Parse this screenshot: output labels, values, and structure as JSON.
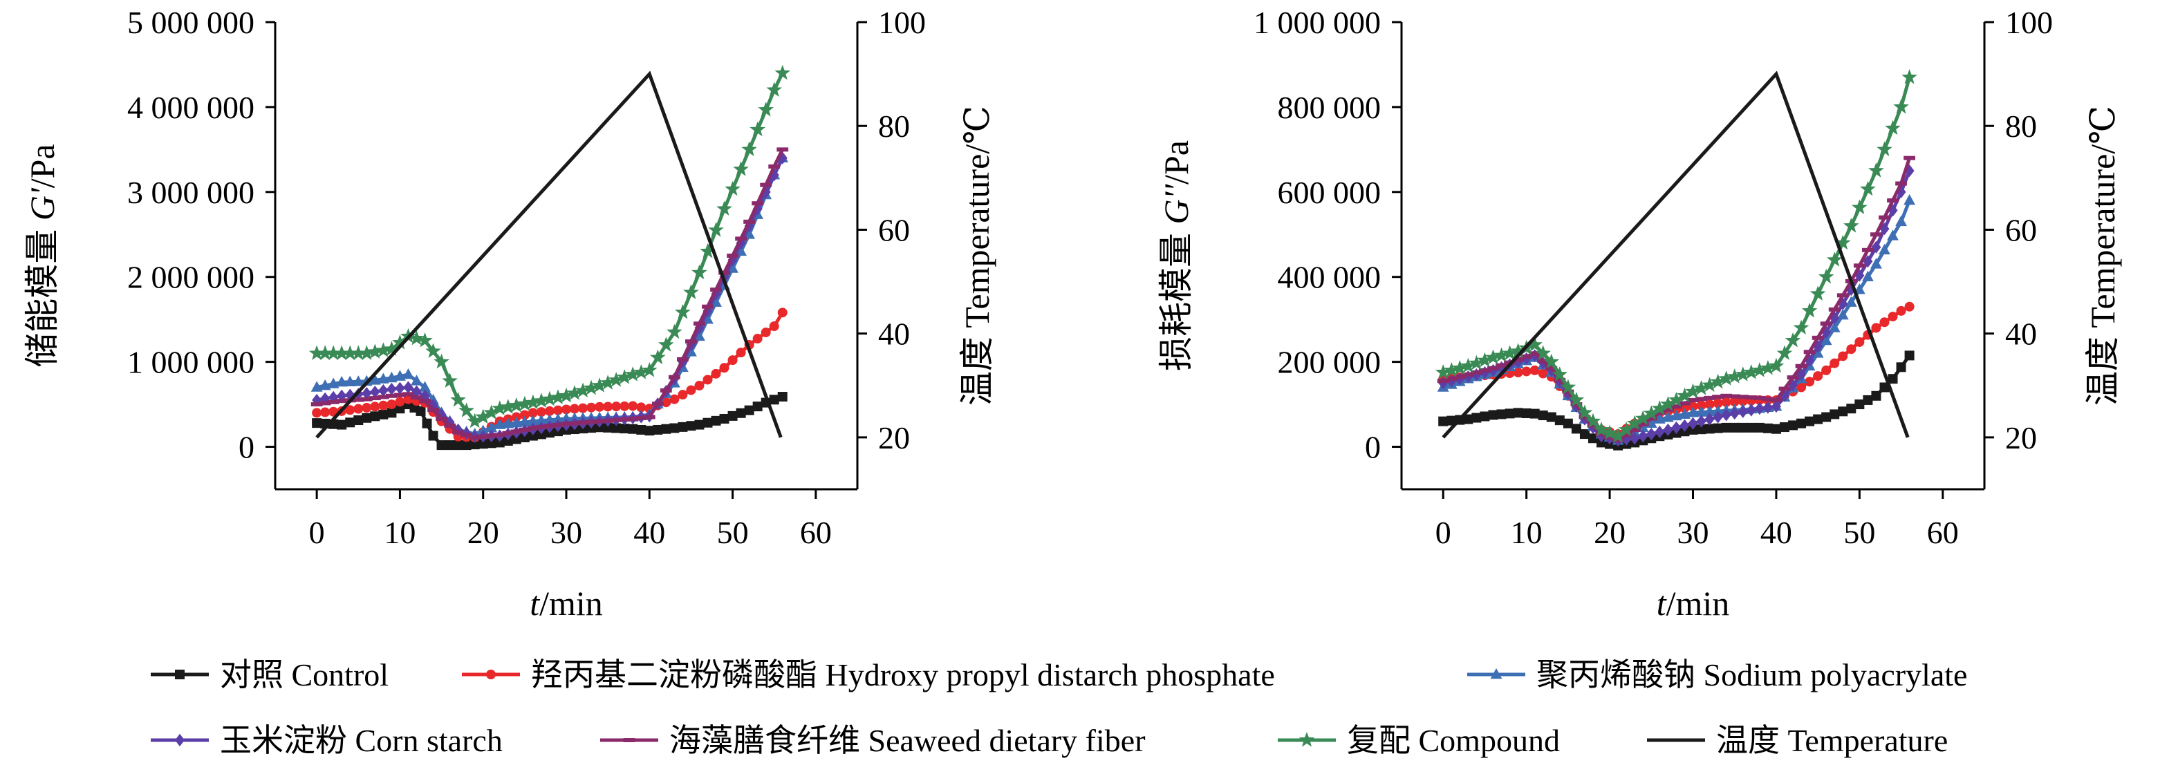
{
  "chart_data": [
    {
      "type": "line",
      "xlabel_italic": "t",
      "xlabel_rest": "/min",
      "ylabel_prefix": "储能模量 ",
      "ylabel_italic": "G'",
      "ylabel_suffix": "/Pa",
      "y2label": "温度 Temperature/℃",
      "xlim": [
        -5,
        65
      ],
      "ylim": [
        -500000,
        5000000
      ],
      "y2lim": [
        10,
        100
      ],
      "xticks": [
        0,
        10,
        20,
        30,
        40,
        50,
        60
      ],
      "yticks": [
        0,
        1000000,
        2000000,
        3000000,
        4000000,
        5000000
      ],
      "ytick_labels": [
        "0",
        "1 000 000",
        "2 000 000",
        "3 000 000",
        "4 000 000",
        "5 000 000"
      ],
      "y2ticks": [
        20,
        40,
        60,
        80,
        100
      ],
      "temperature": {
        "x": [
          0,
          40,
          55.8
        ],
        "y": [
          20,
          90,
          20
        ]
      },
      "series": [
        {
          "name": "对照 Control",
          "marker": "square",
          "color": "#1a1a1a",
          "x": [
            0,
            3,
            6,
            9,
            11,
            12.5,
            14,
            15,
            18,
            22,
            26,
            30,
            34,
            38,
            40,
            43,
            46,
            49,
            52,
            54,
            56
          ],
          "y": [
            280000,
            260000,
            340000,
            400000,
            500000,
            420000,
            130000,
            20000,
            20000,
            50000,
            130000,
            200000,
            230000,
            210000,
            190000,
            220000,
            260000,
            330000,
            430000,
            520000,
            590000
          ]
        },
        {
          "name": "羟丙基二淀粉磷酸酯 Hydroxy propyl distarch phosphate",
          "marker": "circle",
          "color": "#e8282a",
          "x": [
            0,
            3,
            6,
            9,
            11,
            13,
            15,
            17,
            19,
            22,
            26,
            30,
            34,
            38,
            40,
            43,
            46,
            49,
            52,
            55,
            56
          ],
          "y": [
            400000,
            420000,
            460000,
            500000,
            560000,
            520000,
            300000,
            120000,
            110000,
            300000,
            400000,
            440000,
            470000,
            480000,
            450000,
            560000,
            720000,
            930000,
            1200000,
            1420000,
            1580000
          ]
        },
        {
          "name": "聚丙烯酸钠 Sodium polyacrylate",
          "marker": "triangle",
          "color": "#3e6fb4",
          "x": [
            0,
            3,
            6,
            9,
            11,
            13,
            15,
            17,
            19,
            22,
            26,
            30,
            34,
            38,
            40,
            43,
            46,
            49,
            52,
            55,
            56
          ],
          "y": [
            700000,
            760000,
            770000,
            810000,
            850000,
            700000,
            400000,
            200000,
            150000,
            260000,
            300000,
            330000,
            340000,
            350000,
            380000,
            750000,
            1300000,
            1900000,
            2500000,
            3200000,
            3400000
          ]
        },
        {
          "name": "玉米淀粉 Corn starch",
          "marker": "diamond",
          "color": "#5b3ea8",
          "x": [
            0,
            3,
            6,
            9,
            11,
            13,
            15,
            17,
            19,
            22,
            26,
            30,
            34,
            38,
            40,
            43,
            46,
            49,
            52,
            55,
            56
          ],
          "y": [
            550000,
            600000,
            630000,
            680000,
            700000,
            600000,
            380000,
            200000,
            120000,
            130000,
            210000,
            260000,
            300000,
            340000,
            360000,
            800000,
            1400000,
            2000000,
            2600000,
            3200000,
            3400000
          ]
        },
        {
          "name": "海藻膳食纤维 Seaweed dietary fiber",
          "marker": "dash",
          "color": "#8a2a6a",
          "x": [
            0,
            3,
            6,
            9,
            11,
            13,
            15,
            17,
            19,
            22,
            26,
            30,
            34,
            38,
            40,
            43,
            46,
            49,
            52,
            55,
            56
          ],
          "y": [
            500000,
            540000,
            560000,
            600000,
            620000,
            540000,
            330000,
            170000,
            110000,
            140000,
            220000,
            270000,
            300000,
            330000,
            350000,
            820000,
            1450000,
            2050000,
            2650000,
            3300000,
            3500000
          ]
        },
        {
          "name": "复配 Compound",
          "marker": "star",
          "color": "#3a8a55",
          "x": [
            0,
            3,
            6,
            9,
            11,
            13,
            15,
            17,
            19,
            22,
            26,
            30,
            34,
            38,
            40,
            43,
            46,
            49,
            52,
            55,
            56
          ],
          "y": [
            1100000,
            1100000,
            1100000,
            1150000,
            1300000,
            1250000,
            1000000,
            550000,
            300000,
            450000,
            520000,
            600000,
            720000,
            850000,
            900000,
            1350000,
            2050000,
            2800000,
            3500000,
            4200000,
            4400000
          ]
        }
      ]
    },
    {
      "type": "line",
      "xlabel_italic": "t",
      "xlabel_rest": "/min",
      "ylabel_prefix": "损耗模量 ",
      "ylabel_italic": "G''",
      "ylabel_suffix": "/Pa",
      "y2label": "温度 Temperature/℃",
      "xlim": [
        -5,
        65
      ],
      "ylim": [
        -100000,
        1000000
      ],
      "y2lim": [
        10,
        100
      ],
      "xticks": [
        0,
        10,
        20,
        30,
        40,
        50,
        60
      ],
      "yticks": [
        0,
        200000,
        400000,
        600000,
        800000,
        1000000
      ],
      "ytick_labels": [
        "0",
        "200 000",
        "400 000",
        "600 000",
        "800 000",
        "1 000 000"
      ],
      "y2ticks": [
        20,
        40,
        60,
        80,
        100
      ],
      "temperature": {
        "x": [
          0,
          40,
          55.8
        ],
        "y": [
          20,
          90,
          20
        ]
      },
      "series": [
        {
          "name": "对照 Control",
          "marker": "square",
          "color": "#1a1a1a",
          "x": [
            0,
            3,
            6,
            9,
            11,
            13,
            15,
            17,
            19,
            21,
            23,
            26,
            30,
            34,
            38,
            40,
            43,
            46,
            49,
            52,
            54,
            56
          ],
          "y": [
            60000,
            65000,
            75000,
            80000,
            78000,
            70000,
            55000,
            30000,
            10000,
            3000,
            10000,
            25000,
            40000,
            45000,
            45000,
            42000,
            55000,
            70000,
            90000,
            120000,
            160000,
            215000
          ]
        },
        {
          "name": "羟丙基二淀粉磷酸酯 Hydroxy propyl distarch phosphate",
          "marker": "circle",
          "color": "#e8282a",
          "x": [
            0,
            3,
            6,
            9,
            11,
            13,
            15,
            17,
            19,
            21,
            23,
            26,
            30,
            34,
            38,
            40,
            43,
            46,
            49,
            52,
            55,
            56
          ],
          "y": [
            160000,
            165000,
            170000,
            175000,
            180000,
            165000,
            120000,
            70000,
            40000,
            30000,
            55000,
            80000,
            95000,
            105000,
            110000,
            110000,
            140000,
            180000,
            230000,
            280000,
            320000,
            330000
          ]
        },
        {
          "name": "聚丙烯酸钠 Sodium polyacrylate",
          "marker": "triangle",
          "color": "#3e6fb4",
          "x": [
            0,
            3,
            6,
            9,
            11,
            13,
            15,
            17,
            19,
            21,
            23,
            26,
            30,
            34,
            38,
            40,
            43,
            46,
            49,
            52,
            55,
            56
          ],
          "y": [
            140000,
            160000,
            175000,
            195000,
            210000,
            175000,
            120000,
            65000,
            30000,
            15000,
            35000,
            65000,
            80000,
            85000,
            90000,
            95000,
            160000,
            250000,
            340000,
            430000,
            530000,
            580000
          ]
        },
        {
          "name": "玉米淀粉 Corn starch",
          "marker": "diamond",
          "color": "#5b3ea8",
          "x": [
            0,
            3,
            6,
            9,
            11,
            13,
            15,
            17,
            19,
            21,
            23,
            26,
            30,
            34,
            38,
            40,
            43,
            46,
            49,
            52,
            55,
            56
          ],
          "y": [
            150000,
            165000,
            180000,
            200000,
            215000,
            180000,
            125000,
            65000,
            25000,
            15000,
            20000,
            35000,
            55000,
            75000,
            90000,
            95000,
            170000,
            270000,
            370000,
            470000,
            600000,
            650000
          ]
        },
        {
          "name": "海藻膳食纤维 Seaweed dietary fiber",
          "marker": "dash",
          "color": "#8a2a6a",
          "x": [
            0,
            3,
            6,
            9,
            11,
            13,
            15,
            17,
            19,
            21,
            23,
            26,
            30,
            34,
            38,
            40,
            43,
            46,
            49,
            52,
            55,
            56
          ],
          "y": [
            155000,
            170000,
            185000,
            205000,
            220000,
            185000,
            130000,
            70000,
            30000,
            15000,
            40000,
            80000,
            110000,
            120000,
            115000,
            110000,
            190000,
            290000,
            390000,
            500000,
            620000,
            680000
          ]
        },
        {
          "name": "复配 Compound",
          "marker": "star",
          "color": "#3a8a55",
          "x": [
            0,
            3,
            6,
            9,
            11,
            13,
            15,
            17,
            19,
            21,
            23,
            26,
            30,
            34,
            38,
            40,
            43,
            46,
            49,
            52,
            55,
            56
          ],
          "y": [
            175000,
            190000,
            210000,
            225000,
            240000,
            200000,
            140000,
            80000,
            40000,
            25000,
            55000,
            90000,
            130000,
            160000,
            180000,
            190000,
            280000,
            400000,
            520000,
            650000,
            800000,
            870000
          ]
        }
      ]
    }
  ],
  "legend": {
    "items": [
      {
        "label": "对照 Control",
        "marker": "square",
        "color": "#1a1a1a"
      },
      {
        "label": "羟丙基二淀粉磷酸酯 Hydroxy propyl distarch phosphate",
        "marker": "circle",
        "color": "#e8282a"
      },
      {
        "label": "聚丙烯酸钠 Sodium polyacrylate",
        "marker": "triangle",
        "color": "#3e6fb4"
      },
      {
        "label": "玉米淀粉 Corn starch",
        "marker": "diamond",
        "color": "#5b3ea8"
      },
      {
        "label": "海藻膳食纤维 Seaweed dietary fiber",
        "marker": "dash",
        "color": "#8a2a6a"
      },
      {
        "label": "复配 Compound",
        "marker": "star",
        "color": "#3a8a55"
      },
      {
        "label": "温度 Temperature",
        "marker": "none",
        "color": "#1a1a1a"
      }
    ]
  }
}
